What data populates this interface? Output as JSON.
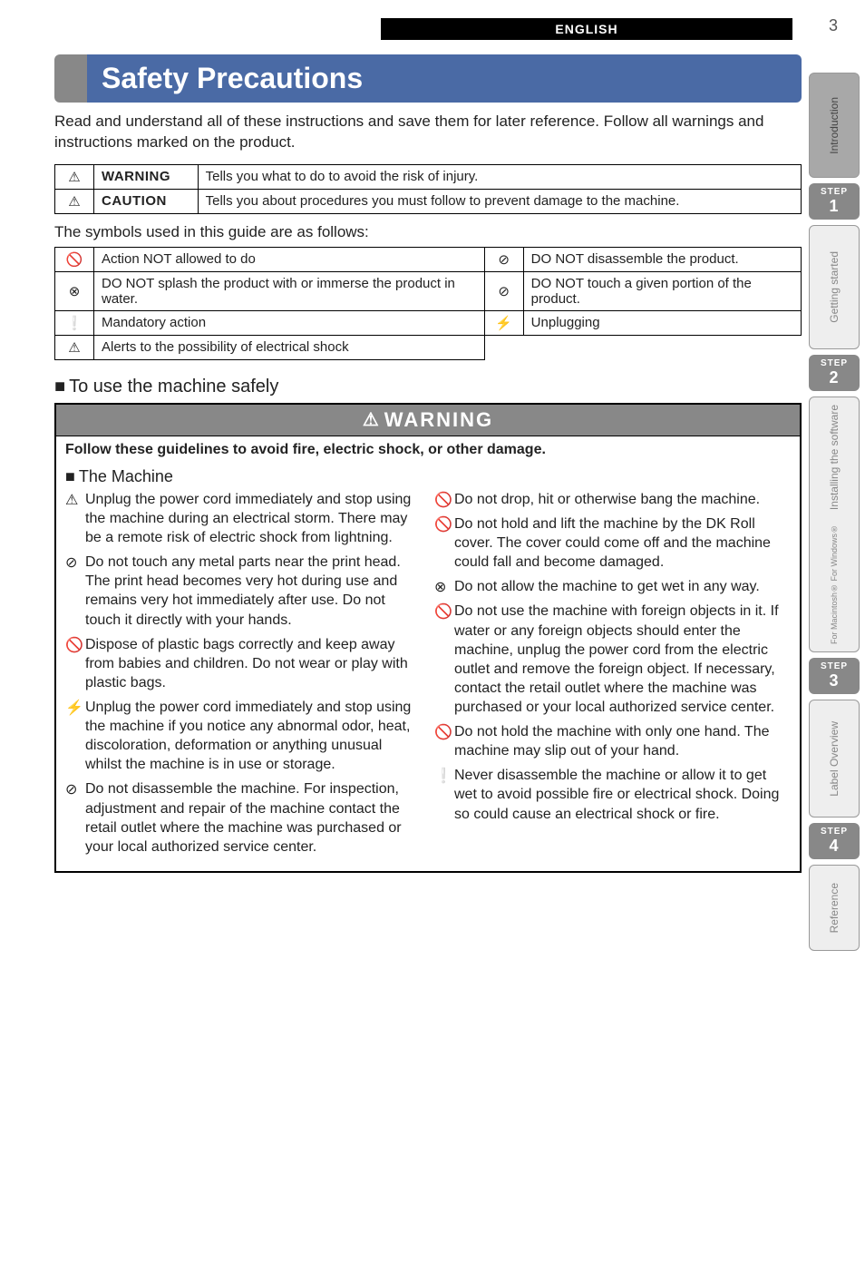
{
  "page": {
    "lang_tab": "ENGLISH",
    "number": "3",
    "title": "Safety Precautions",
    "intro": "Read and understand all of these instructions and save them for later reference. Follow all warnings and instructions marked on the product."
  },
  "defs": {
    "rows": [
      {
        "icon": "⚠",
        "label": "WARNING",
        "text": "Tells you what to do to avoid the risk of injury."
      },
      {
        "icon": "⚠",
        "label": "CAUTION",
        "text": "Tells you about procedures you must follow to prevent damage to the machine."
      }
    ]
  },
  "symbols": {
    "intro": "The symbols used in this guide are as follows:",
    "rows": [
      [
        {
          "i": "🚫",
          "t": "Action NOT allowed to do"
        },
        {
          "i": "⊘",
          "t": "DO NOT disassemble the product."
        }
      ],
      [
        {
          "i": "⊗",
          "t": "DO NOT splash the product with or immerse the product in water."
        },
        {
          "i": "⊘",
          "t": "DO NOT touch a given portion of the product."
        }
      ],
      [
        {
          "i": "❕",
          "t": "Mandatory action"
        },
        {
          "i": "⚡",
          "t": "Unplugging"
        }
      ],
      [
        {
          "i": "⚠",
          "t": "Alerts to the possibility of electrical shock"
        },
        null
      ]
    ]
  },
  "safeuse": {
    "heading": "To use the machine safely",
    "warning_label": "WARNING",
    "guideline": "Follow these guidelines to avoid fire, electric shock, or other damage.",
    "machine_heading": "The Machine",
    "left": [
      {
        "i": "⚠",
        "t": "Unplug the power cord immediately and stop using the machine during an electrical storm. There may be a remote risk of electric shock from lightning."
      },
      {
        "i": "⊘",
        "t": "Do not touch any metal parts near the print head. The print head becomes very hot during use and remains very hot immediately after use. Do not touch it directly with your hands."
      },
      {
        "i": "🚫",
        "t": "Dispose of plastic bags correctly and keep away from babies and children. Do not wear or play with plastic bags."
      },
      {
        "i": "⚡",
        "t": "Unplug the power cord immediately and stop using the machine if you notice any abnormal odor, heat, discoloration, deformation or anything unusual whilst the machine is in use or storage."
      },
      {
        "i": "⊘",
        "t": "Do not disassemble the machine. For inspection, adjustment and repair of the machine contact the retail outlet where the machine was purchased or your local authorized service center."
      }
    ],
    "right": [
      {
        "i": "🚫",
        "t": "Do not drop, hit or otherwise bang the machine."
      },
      {
        "i": "🚫",
        "t": "Do not hold and lift the machine by the DK Roll cover. The cover could come off and the machine could fall and become damaged."
      },
      {
        "i": "⊗",
        "t": "Do not allow the machine to get wet in any way."
      },
      {
        "i": "🚫",
        "t": "Do not use the machine with foreign objects in it. If water or any foreign objects should enter the machine, unplug the power cord from the electric outlet and  remove the foreign object. If necessary, contact the retail outlet where the machine was purchased or your local authorized service center."
      },
      {
        "i": "🚫",
        "t": "Do not hold the machine with only one hand. The machine may slip out of your hand."
      },
      {
        "i": "❕",
        "t": "Never disassemble the machine or allow it to get wet to avoid possible fire or electrical shock.  Doing so could cause an electrical shock or fire."
      }
    ]
  },
  "sidebar": [
    {
      "type": "tab",
      "label": "Introduction",
      "active": true
    },
    {
      "type": "step",
      "label": "STEP",
      "n": "1"
    },
    {
      "type": "tab",
      "label": "Getting started"
    },
    {
      "type": "step",
      "label": "STEP",
      "n": "2"
    },
    {
      "type": "tab",
      "label": "Installing the software",
      "sub": "For Macintosh®   For Windows®"
    },
    {
      "type": "step",
      "label": "STEP",
      "n": "3"
    },
    {
      "type": "tab",
      "label": "Label Overview"
    },
    {
      "type": "step",
      "label": "STEP",
      "n": "4"
    },
    {
      "type": "tab",
      "label": "Reference"
    }
  ]
}
